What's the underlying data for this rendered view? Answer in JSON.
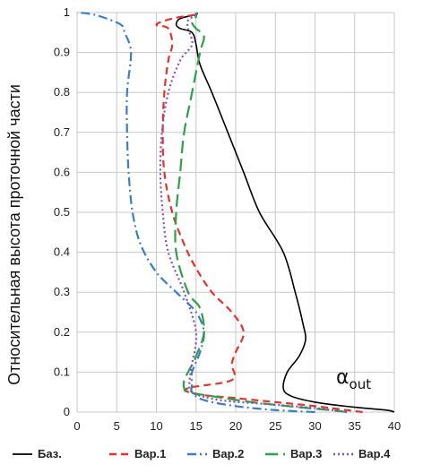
{
  "chart_data": {
    "type": "line",
    "ylabel": "Относительная высота проточной части",
    "xlabel": "",
    "xlim": [
      0,
      40
    ],
    "ylim": [
      0,
      1
    ],
    "x_ticks": [
      "0",
      "5",
      "10",
      "15",
      "20",
      "25",
      "30",
      "35",
      "40"
    ],
    "y_ticks": [
      "0",
      "0.1",
      "0.2",
      "0.3",
      "0.4",
      "0.5",
      "0.6",
      "0.7",
      "0.8",
      "0.9",
      "1"
    ],
    "grid": true,
    "legend_position": "bottom",
    "annotation": {
      "symbol": "α",
      "subscript": "out"
    },
    "series": [
      {
        "name": "Баз.",
        "color": "#000000",
        "dash": "solid",
        "points": [
          [
            40,
            0
          ],
          [
            39,
            0.005
          ],
          [
            35,
            0.012
          ],
          [
            30,
            0.025
          ],
          [
            27,
            0.04
          ],
          [
            26,
            0.06
          ],
          [
            26.5,
            0.1
          ],
          [
            28,
            0.14
          ],
          [
            28.8,
            0.18
          ],
          [
            28.5,
            0.22
          ],
          [
            27.5,
            0.3
          ],
          [
            26,
            0.4
          ],
          [
            23,
            0.5
          ],
          [
            21,
            0.6
          ],
          [
            19,
            0.7
          ],
          [
            17,
            0.8
          ],
          [
            15.5,
            0.87
          ],
          [
            15,
            0.92
          ],
          [
            14.5,
            0.95
          ],
          [
            13,
            0.96
          ],
          [
            12.5,
            0.97
          ],
          [
            13,
            0.985
          ],
          [
            15,
            0.995
          ],
          [
            15,
            1
          ]
        ]
      },
      {
        "name": "Вар.1",
        "color": "#e2342e",
        "dash": "8 5",
        "points": [
          [
            36,
            0
          ],
          [
            34,
            0.005
          ],
          [
            30,
            0.015
          ],
          [
            25,
            0.025
          ],
          [
            20,
            0.035
          ],
          [
            15,
            0.045
          ],
          [
            14,
            0.06
          ],
          [
            19.5,
            0.08
          ],
          [
            19.5,
            0.12
          ],
          [
            20,
            0.15
          ],
          [
            21,
            0.2
          ],
          [
            19.5,
            0.25
          ],
          [
            17,
            0.3
          ],
          [
            15,
            0.36
          ],
          [
            13.5,
            0.42
          ],
          [
            12,
            0.5
          ],
          [
            11,
            0.6
          ],
          [
            10.8,
            0.7
          ],
          [
            11,
            0.8
          ],
          [
            11.5,
            0.88
          ],
          [
            12,
            0.92
          ],
          [
            11.5,
            0.96
          ],
          [
            10,
            0.97
          ],
          [
            12,
            0.985
          ],
          [
            15,
            0.995
          ],
          [
            15,
            1
          ]
        ]
      },
      {
        "name": "Вар.2",
        "color": "#3a7fc4",
        "dash": "10 4 2 4",
        "points": [
          [
            30,
            0
          ],
          [
            25,
            0.005
          ],
          [
            20,
            0.015
          ],
          [
            16,
            0.03
          ],
          [
            14.5,
            0.05
          ],
          [
            14.5,
            0.07
          ],
          [
            14.5,
            0.1
          ],
          [
            15.5,
            0.15
          ],
          [
            16,
            0.2
          ],
          [
            15,
            0.25
          ],
          [
            12.5,
            0.3
          ],
          [
            10,
            0.35
          ],
          [
            8,
            0.42
          ],
          [
            7,
            0.5
          ],
          [
            6.5,
            0.6
          ],
          [
            6.3,
            0.7
          ],
          [
            6.3,
            0.8
          ],
          [
            6.8,
            0.9
          ],
          [
            6,
            0.95
          ],
          [
            5.5,
            0.97
          ],
          [
            3,
            0.99
          ],
          [
            1.5,
            0.997
          ],
          [
            0,
            1
          ]
        ]
      },
      {
        "name": "Вар.3",
        "color": "#2fa04a",
        "dash": "14 6",
        "points": [
          [
            34,
            0
          ],
          [
            32,
            0.005
          ],
          [
            28,
            0.012
          ],
          [
            22,
            0.025
          ],
          [
            17,
            0.04
          ],
          [
            14,
            0.05
          ],
          [
            13.5,
            0.06
          ],
          [
            13.5,
            0.08
          ],
          [
            14,
            0.1
          ],
          [
            15,
            0.14
          ],
          [
            16,
            0.2
          ],
          [
            15.5,
            0.26
          ],
          [
            14,
            0.3
          ],
          [
            12.5,
            0.4
          ],
          [
            12.5,
            0.5
          ],
          [
            13,
            0.6
          ],
          [
            13.5,
            0.7
          ],
          [
            14.5,
            0.8
          ],
          [
            15.5,
            0.9
          ],
          [
            16,
            0.94
          ],
          [
            15,
            0.96
          ],
          [
            14.5,
            0.975
          ],
          [
            15,
            0.99
          ],
          [
            15,
            1
          ]
        ]
      },
      {
        "name": "Вар.4",
        "color": "#8a4fb4",
        "dash": "2 3",
        "points": [
          [
            34,
            0
          ],
          [
            30,
            0.01
          ],
          [
            24,
            0.02
          ],
          [
            18,
            0.03
          ],
          [
            14.5,
            0.05
          ],
          [
            14.2,
            0.08
          ],
          [
            14.5,
            0.12
          ],
          [
            15,
            0.2
          ],
          [
            13.5,
            0.3
          ],
          [
            11.5,
            0.4
          ],
          [
            10.8,
            0.5
          ],
          [
            10.5,
            0.6
          ],
          [
            10.7,
            0.7
          ],
          [
            11.5,
            0.8
          ],
          [
            13,
            0.88
          ],
          [
            14.5,
            0.92
          ],
          [
            14,
            0.96
          ],
          [
            14,
            0.98
          ],
          [
            15,
            0.995
          ],
          [
            15,
            1
          ]
        ]
      }
    ]
  }
}
